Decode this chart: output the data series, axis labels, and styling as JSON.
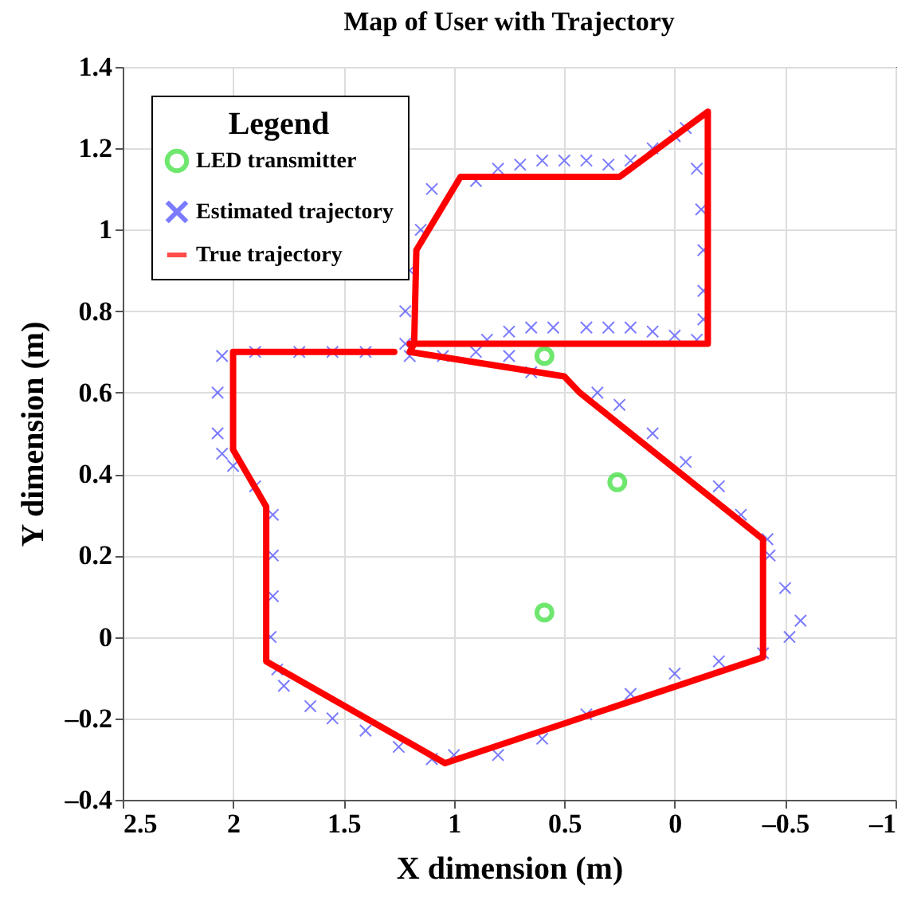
{
  "chart_data": {
    "type": "scatter",
    "title": "Map of User with Trajectory",
    "xlabel": "X dimension (m)",
    "ylabel": "Y dimension (m)",
    "legend_title": "Legend",
    "xlim": [
      2.5,
      -1
    ],
    "xticks": [
      2.5,
      2,
      1.5,
      1,
      0.5,
      0,
      {
        "value": -0.5,
        "label": "–0.5"
      },
      {
        "value": -1,
        "label": "–1"
      }
    ],
    "ylim": [
      -0.4,
      1.4
    ],
    "yticks": [
      {
        "value": -0.4,
        "label": "–0.4"
      },
      {
        "value": -0.2,
        "label": "–0.2"
      },
      0,
      0.2,
      0.4,
      0.6,
      0.8,
      1,
      1.2,
      1.4
    ],
    "grid": true,
    "legend": "top left",
    "series": [
      {
        "name": "LED transmitter",
        "type": "scatter",
        "marker": "circle",
        "color": "#33dd33",
        "x": [
          0.59,
          0.26,
          0.59
        ],
        "values": [
          0.69,
          0.38,
          0.06
        ]
      },
      {
        "name": "Estimated trajectory",
        "type": "scatter",
        "marker": "cross",
        "color": "#4444ff",
        "x": [
          0.9,
          0.8,
          0.7,
          0.6,
          0.5,
          0.4,
          0.3,
          0.2,
          0.1,
          0.0,
          -0.05,
          -0.1,
          -0.12,
          -0.13,
          -0.13,
          -0.13,
          0.85,
          0.75,
          0.65,
          0.55,
          0.4,
          0.3,
          0.2,
          0.1,
          0.0,
          -0.1,
          1.1,
          1.15,
          1.2,
          1.22,
          1.22,
          2.05,
          1.9,
          1.7,
          1.55,
          1.4,
          1.2,
          1.05,
          0.9,
          0.75,
          0.65,
          2.07,
          2.07,
          2.05,
          2.0,
          1.9,
          1.82,
          1.82,
          1.82,
          1.83,
          1.8,
          1.77,
          1.65,
          1.55,
          1.4,
          1.25,
          1.1,
          1.0,
          0.8,
          0.6,
          0.4,
          0.2,
          0.0,
          -0.2,
          -0.4,
          -0.52,
          -0.57,
          -0.5,
          -0.43,
          -0.42,
          -0.3,
          -0.2,
          -0.05,
          0.1,
          0.25,
          0.35
        ],
        "values": [
          1.12,
          1.15,
          1.16,
          1.17,
          1.17,
          1.17,
          1.16,
          1.17,
          1.2,
          1.23,
          1.25,
          1.15,
          1.05,
          0.95,
          0.85,
          0.78,
          0.73,
          0.75,
          0.76,
          0.76,
          0.76,
          0.76,
          0.76,
          0.75,
          0.74,
          0.73,
          1.1,
          1.0,
          0.9,
          0.8,
          0.72,
          0.69,
          0.7,
          0.7,
          0.7,
          0.7,
          0.69,
          0.69,
          0.7,
          0.69,
          0.65,
          0.6,
          0.5,
          0.45,
          0.42,
          0.37,
          0.3,
          0.2,
          0.1,
          0.0,
          -0.08,
          -0.12,
          -0.17,
          -0.2,
          -0.23,
          -0.27,
          -0.3,
          -0.29,
          -0.29,
          -0.25,
          -0.19,
          -0.14,
          -0.09,
          -0.06,
          -0.04,
          0.0,
          0.04,
          0.12,
          0.2,
          0.24,
          0.3,
          0.37,
          0.43,
          0.5,
          0.57,
          0.6
        ]
      },
      {
        "name": "True trajectory",
        "type": "line",
        "marker": "none",
        "color": "#ff0000",
        "x": [
          1.2,
          -0.15,
          -0.15,
          0.25,
          0.97,
          1.17,
          1.18,
          1.2,
          0.5,
          0.43,
          -0.4,
          -0.4,
          1.04,
          1.85,
          1.85,
          2.0,
          2.0,
          1.27
        ],
        "values": [
          0.72,
          0.72,
          1.29,
          1.13,
          1.13,
          0.95,
          0.72,
          0.7,
          0.64,
          0.6,
          0.24,
          -0.05,
          -0.31,
          -0.06,
          0.32,
          0.46,
          0.7,
          0.7
        ]
      }
    ]
  }
}
